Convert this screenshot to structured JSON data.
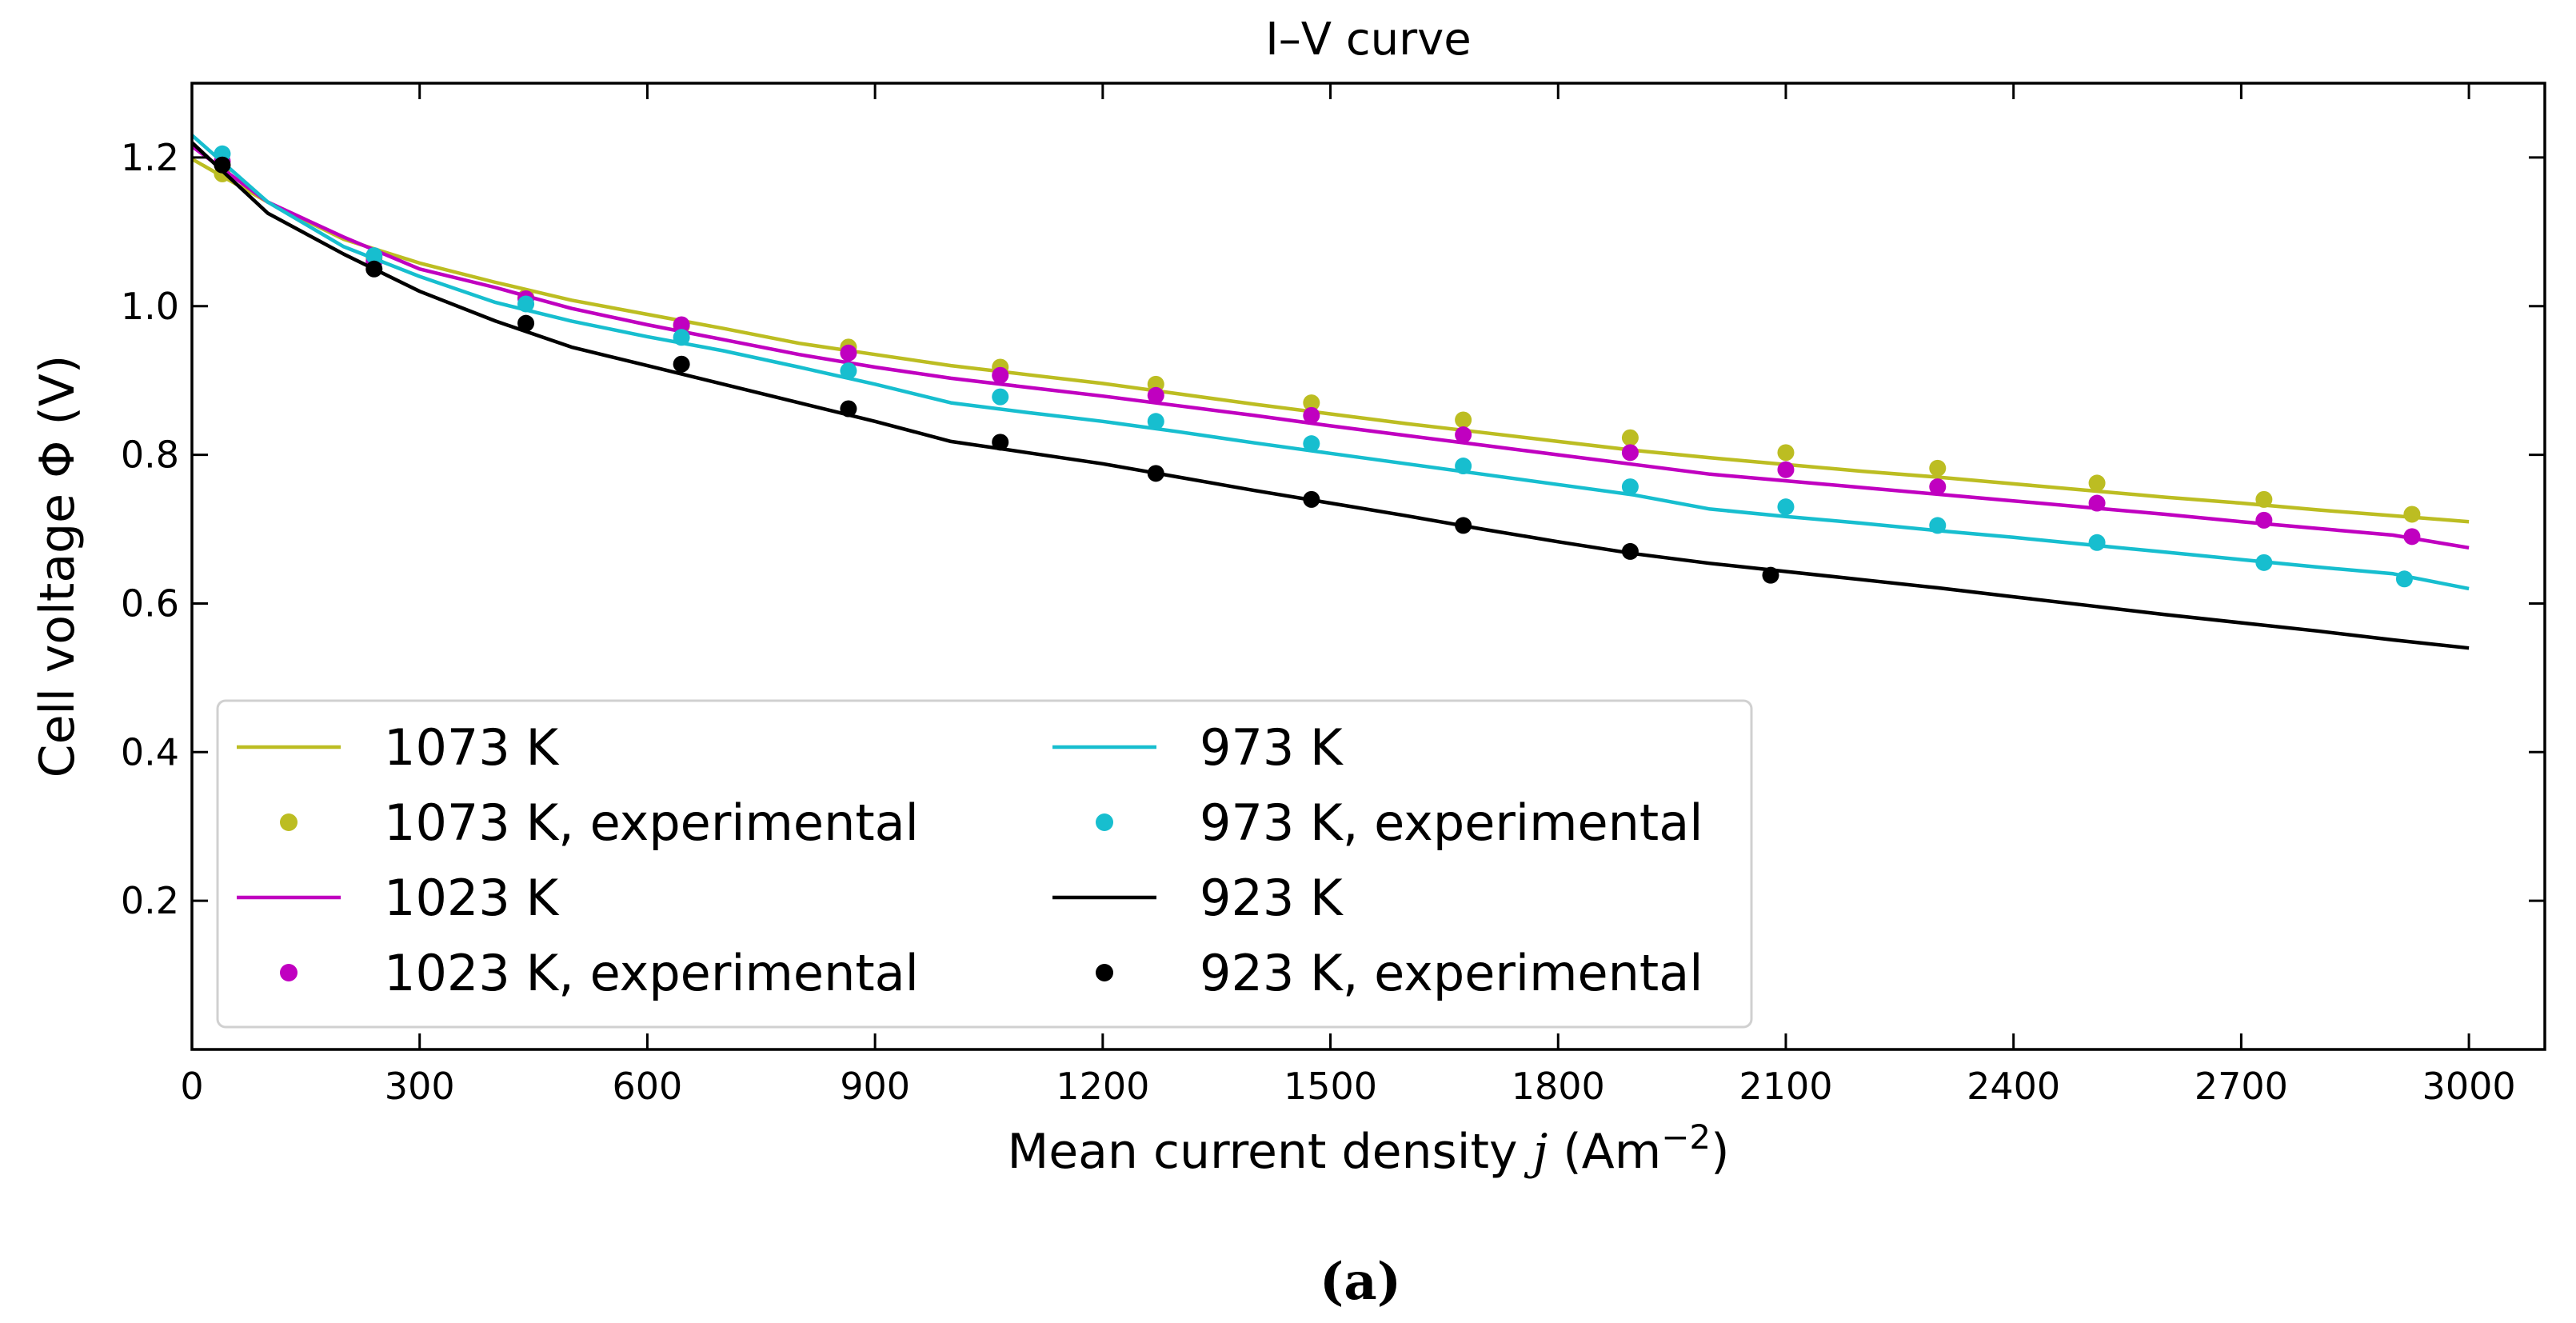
{
  "chart_data": {
    "type": "line",
    "title": "I–V curve",
    "xlabel": "Mean current density ",
    "xlabel_var": "j",
    "xlabel_unit": " (Am",
    "xlabel_exp": "−2",
    "xlabel_close": ")",
    "ylabel": "Cell voltage Φ (V)",
    "xlim": [
      0,
      3100
    ],
    "ylim": [
      0,
      1.3
    ],
    "xticks": [
      0,
      300,
      600,
      900,
      1200,
      1500,
      1800,
      2100,
      2400,
      2700,
      3000
    ],
    "xtick_labels": [
      "0",
      "300",
      "600",
      "900",
      "1200",
      "1500",
      "1800",
      "2100",
      "2400",
      "2700",
      "3000"
    ],
    "yticks": [
      0.2,
      0.4,
      0.6,
      0.8,
      1.0,
      1.2
    ],
    "ytick_labels": [
      "0.2",
      "0.4",
      "0.6",
      "0.8",
      "1.0",
      "1.2"
    ],
    "legend_position": "lower-left",
    "panel_label": "(a)",
    "series": [
      {
        "name": "1073 K",
        "kind": "line",
        "color": "#bcbd22",
        "x": [
          0,
          100,
          200,
          300,
          400,
          500,
          600,
          700,
          800,
          900,
          1000,
          1100,
          1200,
          1300,
          1400,
          1500,
          1600,
          1700,
          1800,
          1900,
          2000,
          2100,
          2200,
          2300,
          2400,
          2500,
          2600,
          2700,
          2800,
          2900,
          3000
        ],
        "y": [
          1.198,
          1.14,
          1.09,
          1.058,
          1.032,
          1.008,
          0.989,
          0.97,
          0.95,
          0.935,
          0.92,
          0.908,
          0.896,
          0.882,
          0.868,
          0.855,
          0.842,
          0.83,
          0.818,
          0.806,
          0.796,
          0.787,
          0.778,
          0.77,
          0.761,
          0.752,
          0.743,
          0.735,
          0.726,
          0.718,
          0.71
        ]
      },
      {
        "name": "1073 K, experimental",
        "kind": "scatter",
        "color": "#bcbd22",
        "x": [
          40,
          240,
          440,
          645,
          865,
          1065,
          1270,
          1475,
          1675,
          1895,
          2100,
          2300,
          2510,
          2730,
          2925
        ],
        "y": [
          1.178,
          1.065,
          1.012,
          0.973,
          0.945,
          0.918,
          0.895,
          0.87,
          0.847,
          0.823,
          0.803,
          0.782,
          0.762,
          0.74,
          0.72
        ]
      },
      {
        "name": "1023 K",
        "kind": "line",
        "color": "#c000c0",
        "x": [
          0,
          100,
          200,
          300,
          400,
          500,
          600,
          700,
          800,
          900,
          1000,
          1100,
          1200,
          1300,
          1400,
          1500,
          1600,
          1700,
          1800,
          1900,
          2000,
          2100,
          2200,
          2300,
          2400,
          2500,
          2600,
          2700,
          2800,
          2900,
          3000
        ],
        "y": [
          1.215,
          1.14,
          1.093,
          1.05,
          1.025,
          0.997,
          0.975,
          0.955,
          0.935,
          0.918,
          0.903,
          0.891,
          0.879,
          0.866,
          0.853,
          0.839,
          0.826,
          0.813,
          0.8,
          0.787,
          0.774,
          0.765,
          0.756,
          0.747,
          0.738,
          0.729,
          0.72,
          0.71,
          0.701,
          0.692,
          0.675
        ]
      },
      {
        "name": "1023 K, experimental",
        "kind": "scatter",
        "color": "#c000c0",
        "x": [
          40,
          240,
          440,
          645,
          865,
          1065,
          1270,
          1475,
          1675,
          1895,
          2100,
          2300,
          2510,
          2730,
          2925
        ],
        "y": [
          1.195,
          1.06,
          1.01,
          0.975,
          0.937,
          0.907,
          0.88,
          0.853,
          0.827,
          0.803,
          0.78,
          0.757,
          0.735,
          0.712,
          0.69
        ]
      },
      {
        "name": "973 K",
        "kind": "line",
        "color": "#17becf",
        "x": [
          0,
          100,
          200,
          300,
          400,
          500,
          600,
          700,
          800,
          900,
          1000,
          1100,
          1200,
          1300,
          1400,
          1500,
          1600,
          1700,
          1800,
          1900,
          2000,
          2100,
          2200,
          2300,
          2400,
          2500,
          2600,
          2700,
          2800,
          2900,
          3000
        ],
        "y": [
          1.23,
          1.14,
          1.08,
          1.04,
          1.005,
          0.98,
          0.959,
          0.94,
          0.918,
          0.895,
          0.87,
          0.857,
          0.845,
          0.831,
          0.816,
          0.802,
          0.788,
          0.774,
          0.76,
          0.746,
          0.727,
          0.717,
          0.708,
          0.698,
          0.689,
          0.679,
          0.669,
          0.659,
          0.649,
          0.64,
          0.62
        ]
      },
      {
        "name": "973 K, experimental",
        "kind": "scatter",
        "color": "#17becf",
        "x": [
          40,
          240,
          440,
          645,
          865,
          1065,
          1270,
          1475,
          1675,
          1895,
          2100,
          2300,
          2510,
          2730,
          2915
        ],
        "y": [
          1.205,
          1.068,
          1.003,
          0.958,
          0.913,
          0.878,
          0.845,
          0.815,
          0.785,
          0.757,
          0.73,
          0.705,
          0.682,
          0.655,
          0.633
        ]
      },
      {
        "name": "923 K",
        "kind": "line",
        "color": "#000000",
        "x": [
          0,
          100,
          200,
          300,
          400,
          500,
          600,
          700,
          800,
          900,
          1000,
          1100,
          1200,
          1300,
          1400,
          1500,
          1600,
          1700,
          1800,
          1900,
          2000,
          2100,
          2200,
          2300,
          2400,
          2500,
          2600,
          2700,
          2800,
          2900,
          3000
        ],
        "y": [
          1.22,
          1.125,
          1.07,
          1.02,
          0.98,
          0.945,
          0.92,
          0.895,
          0.87,
          0.845,
          0.818,
          0.803,
          0.788,
          0.77,
          0.752,
          0.735,
          0.718,
          0.7,
          0.683,
          0.667,
          0.654,
          0.643,
          0.632,
          0.621,
          0.609,
          0.597,
          0.585,
          0.574,
          0.563,
          0.551,
          0.54
        ]
      },
      {
        "name": "923 K, experimental",
        "kind": "scatter",
        "color": "#000000",
        "x": [
          40,
          240,
          440,
          645,
          865,
          1065,
          1270,
          1475,
          1675,
          1895,
          2080
        ],
        "y": [
          1.19,
          1.05,
          0.977,
          0.922,
          0.862,
          0.817,
          0.775,
          0.74,
          0.705,
          0.67,
          0.638
        ]
      }
    ]
  }
}
